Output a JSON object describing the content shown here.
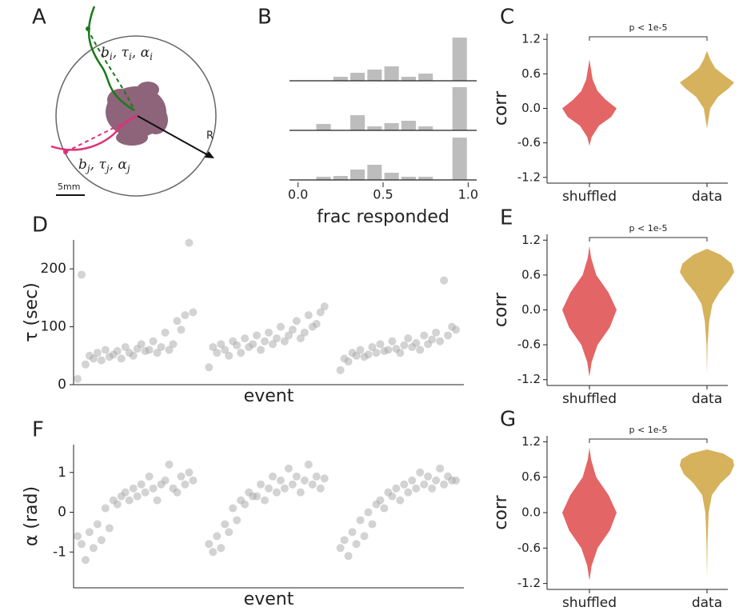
{
  "diagram": {
    "panel": "A",
    "label_i": [
      "b",
      "i",
      ", τ",
      "i",
      ", α",
      "i"
    ],
    "label_j": [
      "b",
      "j",
      ", τ",
      "j",
      ", α",
      "j"
    ],
    "radius_label": "R",
    "scale_label": "5mm"
  },
  "chart_data": [
    {
      "type": "histogram",
      "panel": "B",
      "xlabel": "frac responded",
      "color": "#bdbdbd",
      "bins": [
        0,
        0.1,
        0.2,
        0.3,
        0.4,
        0.5,
        0.6,
        0.7,
        0.8,
        0.9,
        1.0
      ],
      "xlim": [
        -0.05,
        1.05
      ],
      "xticks": [
        {
          "value": 0,
          "label": "0.0"
        },
        0.5,
        {
          "value": 1,
          "label": "1.0"
        }
      ],
      "ylim": [
        0,
        60
      ],
      "series": [
        {
          "values": [
            0,
            0,
            5,
            10,
            14,
            18,
            5,
            9,
            0,
            54
          ]
        },
        {
          "values": [
            0,
            8,
            0,
            19,
            5,
            9,
            12,
            5,
            0,
            54
          ]
        },
        {
          "values": [
            0,
            4,
            5,
            13,
            19,
            9,
            4,
            4,
            0,
            53
          ]
        }
      ]
    },
    {
      "type": "violin",
      "panel": "C",
      "ylabel": "corr",
      "annotation": "p < 1e-5",
      "categories": [
        "shuffled",
        "data"
      ],
      "ylim": [
        -1.3,
        1.3
      ],
      "yticks": [
        -1.2,
        -0.6,
        {
          "value": 0,
          "label": "0.0"
        },
        0.6,
        1.2
      ],
      "violins": [
        {
          "color": "#e46565",
          "y": [
            -0.65,
            -0.5,
            -0.3,
            -0.15,
            0.0,
            0.15,
            0.3,
            0.5,
            0.7,
            0.85
          ],
          "density": [
            0,
            0.08,
            0.35,
            0.8,
            1.0,
            0.6,
            0.3,
            0.12,
            0.05,
            0
          ]
        },
        {
          "color": "#d6b25c",
          "y": [
            -0.35,
            -0.2,
            0.0,
            0.2,
            0.35,
            0.45,
            0.55,
            0.7,
            0.85,
            1.0
          ],
          "density": [
            0,
            0.05,
            0.12,
            0.4,
            0.8,
            1.0,
            0.7,
            0.3,
            0.12,
            0
          ]
        }
      ]
    },
    {
      "type": "scatter",
      "panel": "D",
      "ylabel": "τ  (sec)",
      "xlabel": "event",
      "color": "#a8a8a8",
      "xlim": [
        -1,
        97
      ],
      "ylim": [
        0,
        250
      ],
      "yticks": [
        0,
        100,
        200
      ],
      "x": [
        0,
        1,
        2,
        3,
        4,
        5,
        6,
        7,
        8,
        9,
        10,
        11,
        12,
        13,
        14,
        15,
        16,
        17,
        18,
        19,
        20,
        21,
        22,
        23,
        24,
        25,
        26,
        27,
        28,
        29,
        33,
        34,
        35,
        36,
        37,
        38,
        39,
        40,
        41,
        42,
        43,
        44,
        45,
        46,
        47,
        48,
        49,
        50,
        51,
        52,
        53,
        54,
        55,
        56,
        57,
        58,
        59,
        60,
        61,
        62,
        66,
        67,
        68,
        69,
        70,
        71,
        72,
        73,
        74,
        75,
        76,
        77,
        78,
        79,
        80,
        81,
        82,
        83,
        84,
        85,
        86,
        87,
        88,
        89,
        90,
        91,
        92,
        93,
        94,
        95
      ],
      "y": [
        10,
        190,
        35,
        50,
        45,
        55,
        42,
        60,
        48,
        52,
        58,
        45,
        65,
        55,
        50,
        62,
        70,
        58,
        60,
        75,
        55,
        65,
        90,
        60,
        70,
        110,
        95,
        120,
        245,
        125,
        30,
        65,
        55,
        70,
        60,
        50,
        75,
        68,
        55,
        80,
        65,
        70,
        85,
        60,
        75,
        90,
        70,
        80,
        100,
        75,
        85,
        95,
        110,
        80,
        90,
        120,
        100,
        105,
        125,
        135,
        25,
        45,
        40,
        55,
        50,
        60,
        48,
        52,
        65,
        55,
        70,
        58,
        60,
        75,
        62,
        55,
        68,
        80,
        65,
        72,
        60,
        85,
        70,
        78,
        90,
        75,
        180,
        85,
        100,
        95
      ]
    },
    {
      "type": "violin",
      "panel": "E",
      "ylabel": "corr",
      "annotation": "p < 1e-5",
      "categories": [
        "shuffled",
        "data"
      ],
      "ylim": [
        -1.3,
        1.3
      ],
      "yticks": [
        -1.2,
        -0.6,
        {
          "value": 0,
          "label": "0.0"
        },
        0.6,
        1.2
      ],
      "violins": [
        {
          "color": "#e46565",
          "y": [
            -1.15,
            -0.9,
            -0.6,
            -0.3,
            0.0,
            0.3,
            0.6,
            0.9,
            1.1
          ],
          "density": [
            0,
            0.08,
            0.3,
            0.75,
            1.0,
            0.7,
            0.25,
            0.06,
            0
          ]
        },
        {
          "color": "#d6b25c",
          "y": [
            -1.1,
            -0.6,
            -0.2,
            0.1,
            0.3,
            0.5,
            0.65,
            0.8,
            0.95,
            1.05
          ],
          "density": [
            0,
            0.02,
            0.08,
            0.2,
            0.45,
            0.8,
            1.0,
            0.9,
            0.5,
            0
          ]
        }
      ]
    },
    {
      "type": "scatter",
      "panel": "F",
      "ylabel": "α  (rad)",
      "xlabel": "event",
      "color": "#a8a8a8",
      "xlim": [
        -1,
        97
      ],
      "ylim": [
        -1.9,
        1.7
      ],
      "yticks": [
        -1,
        0,
        1
      ],
      "x": [
        0,
        1,
        2,
        3,
        4,
        5,
        6,
        7,
        8,
        9,
        10,
        11,
        12,
        13,
        14,
        15,
        16,
        17,
        18,
        19,
        20,
        21,
        22,
        23,
        24,
        25,
        26,
        27,
        28,
        29,
        33,
        34,
        35,
        36,
        37,
        38,
        39,
        40,
        41,
        42,
        43,
        44,
        45,
        46,
        47,
        48,
        49,
        50,
        51,
        52,
        53,
        54,
        55,
        56,
        57,
        58,
        59,
        60,
        61,
        62,
        66,
        67,
        68,
        69,
        70,
        71,
        72,
        73,
        74,
        75,
        76,
        77,
        78,
        79,
        80,
        81,
        82,
        83,
        84,
        85,
        86,
        87,
        88,
        89,
        90,
        91,
        92,
        93,
        94,
        95
      ],
      "y": [
        -0.6,
        -0.8,
        -1.2,
        -0.5,
        -0.9,
        -0.3,
        -0.7,
        0.1,
        -0.4,
        0.3,
        0.2,
        0.4,
        0.5,
        0.3,
        0.6,
        0.4,
        0.7,
        0.5,
        0.9,
        0.6,
        0.3,
        0.7,
        0.8,
        1.2,
        0.6,
        0.5,
        0.9,
        0.7,
        1.0,
        0.8,
        -0.8,
        -1.0,
        -0.6,
        -0.9,
        -0.3,
        -0.5,
        0.1,
        -0.2,
        0.3,
        0.2,
        0.5,
        0.4,
        0.4,
        0.7,
        0.3,
        0.6,
        0.9,
        0.5,
        0.8,
        0.6,
        1.1,
        0.7,
        0.9,
        0.5,
        0.8,
        1.2,
        0.7,
        0.9,
        0.6,
        0.85,
        -0.9,
        -0.7,
        -1.1,
        -0.5,
        -0.8,
        -0.2,
        -0.6,
        0.0,
        -0.3,
        0.2,
        0.3,
        0.1,
        0.5,
        0.4,
        0.6,
        0.3,
        0.7,
        0.5,
        0.8,
        0.6,
        1.0,
        0.7,
        0.9,
        0.6,
        0.8,
        1.1,
        0.7,
        0.9,
        0.8,
        0.8
      ]
    },
    {
      "type": "violin",
      "panel": "G",
      "ylabel": "corr",
      "annotation": "p < 1e-5",
      "categories": [
        "shuffled",
        "data"
      ],
      "ylim": [
        -1.3,
        1.3
      ],
      "yticks": [
        -1.2,
        -0.6,
        {
          "value": 0,
          "label": "0.0"
        },
        0.6,
        1.2
      ],
      "violins": [
        {
          "color": "#e46565",
          "y": [
            -1.15,
            -0.9,
            -0.6,
            -0.3,
            0.0,
            0.3,
            0.6,
            0.9,
            1.1
          ],
          "density": [
            0,
            0.08,
            0.3,
            0.75,
            1.0,
            0.7,
            0.25,
            0.06,
            0
          ]
        },
        {
          "color": "#d6b25c",
          "y": [
            -1.1,
            -0.5,
            0.0,
            0.3,
            0.5,
            0.65,
            0.8,
            0.9,
            1.0,
            1.07
          ],
          "density": [
            0,
            0.02,
            0.06,
            0.18,
            0.5,
            0.85,
            1.0,
            0.95,
            0.6,
            0
          ]
        }
      ]
    }
  ]
}
